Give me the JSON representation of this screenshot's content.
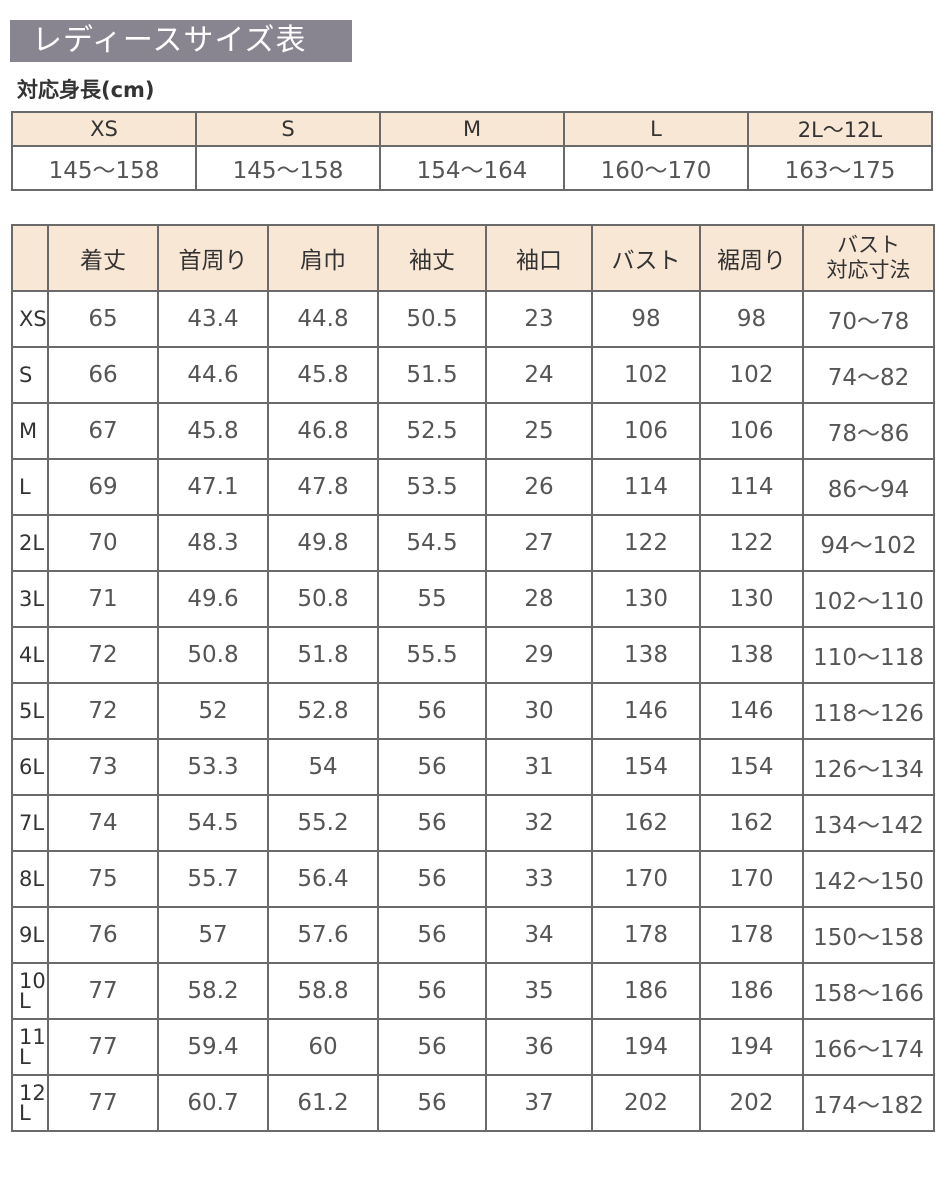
{
  "title": "レディースサイズ表",
  "height_section": {
    "label": "対応身長(cm)",
    "sizes": [
      "XS",
      "S",
      "M",
      "L",
      "2L〜12L"
    ],
    "heights": [
      "145〜158",
      "145〜158",
      "154〜164",
      "160〜170",
      "163〜175"
    ]
  },
  "size_table": {
    "headers": [
      "",
      "着丈",
      "首周り",
      "肩巾",
      "袖丈",
      "袖口",
      "バスト",
      "裾周り",
      "バスト対応寸法"
    ],
    "header_last_lines": [
      "バスト",
      "対応寸法"
    ],
    "rows": [
      [
        "XS",
        "65",
        "43.4",
        "44.8",
        "50.5",
        "23",
        "98",
        "98",
        "70〜78"
      ],
      [
        "S",
        "66",
        "44.6",
        "45.8",
        "51.5",
        "24",
        "102",
        "102",
        "74〜82"
      ],
      [
        "M",
        "67",
        "45.8",
        "46.8",
        "52.5",
        "25",
        "106",
        "106",
        "78〜86"
      ],
      [
        "L",
        "69",
        "47.1",
        "47.8",
        "53.5",
        "26",
        "114",
        "114",
        "86〜94"
      ],
      [
        "2L",
        "70",
        "48.3",
        "49.8",
        "54.5",
        "27",
        "122",
        "122",
        "94〜102"
      ],
      [
        "3L",
        "71",
        "49.6",
        "50.8",
        "55",
        "28",
        "130",
        "130",
        "102〜110"
      ],
      [
        "4L",
        "72",
        "50.8",
        "51.8",
        "55.5",
        "29",
        "138",
        "138",
        "110〜118"
      ],
      [
        "5L",
        "72",
        "52",
        "52.8",
        "56",
        "30",
        "146",
        "146",
        "118〜126"
      ],
      [
        "6L",
        "73",
        "53.3",
        "54",
        "56",
        "31",
        "154",
        "154",
        "126〜134"
      ],
      [
        "7L",
        "74",
        "54.5",
        "55.2",
        "56",
        "32",
        "162",
        "162",
        "134〜142"
      ],
      [
        "8L",
        "75",
        "55.7",
        "56.4",
        "56",
        "33",
        "170",
        "170",
        "142〜150"
      ],
      [
        "9L",
        "76",
        "57",
        "57.6",
        "56",
        "34",
        "178",
        "178",
        "150〜158"
      ],
      [
        "10L",
        "77",
        "58.2",
        "58.8",
        "56",
        "35",
        "186",
        "186",
        "158〜166"
      ],
      [
        "11L",
        "77",
        "59.4",
        "60",
        "56",
        "36",
        "194",
        "194",
        "166〜174"
      ],
      [
        "12L",
        "77",
        "60.7",
        "61.2",
        "56",
        "37",
        "202",
        "202",
        "174〜182"
      ]
    ]
  },
  "colors": {
    "title_bg": "#898590",
    "header_bg": "#f9e7d5",
    "border": "#6a6a6a"
  }
}
